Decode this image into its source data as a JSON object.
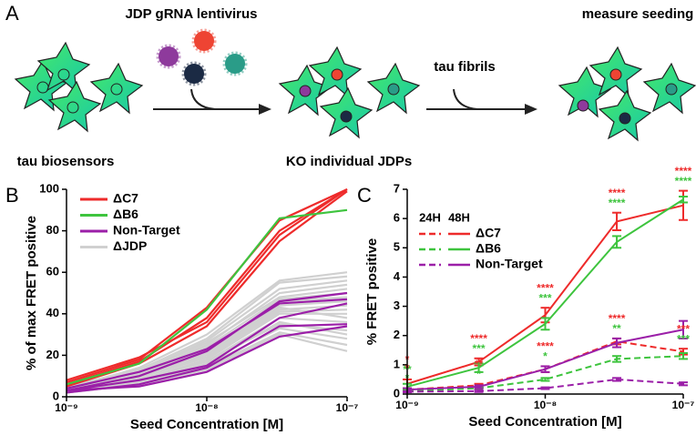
{
  "schematic": {
    "panel": "A",
    "virus_label": "JDP gRNA lentivirus",
    "fibril_label": "tau fibrils",
    "measure_label": "measure seeding",
    "start_label": "tau biosensors",
    "ko_label": "KO individual JDPs"
  },
  "chart_data": [
    {
      "type": "line",
      "panel": "B",
      "ylabel": "% of max FRET positive",
      "xlabel": "Seed Concentration [M]",
      "log_x": true,
      "x": [
        1e-09,
        3.3e-09,
        1e-08,
        3.3e-08,
        1e-07
      ],
      "xlim": [
        1e-09,
        1e-07
      ],
      "xticks": [
        {
          "value": 1e-09,
          "label": "10⁻⁹"
        },
        {
          "value": 1e-08,
          "label": "10⁻⁸"
        },
        {
          "value": 1e-07,
          "label": "10⁻⁷"
        }
      ],
      "ylim": [
        0,
        100
      ],
      "yticks": [
        0,
        20,
        40,
        60,
        80,
        100
      ],
      "series": [
        {
          "name": "ΔJDP",
          "color": "#d0d0d0",
          "lines": [
            [
              4,
              14,
              30,
              56,
              60
            ],
            [
              5,
              13,
              28,
              55,
              58
            ],
            [
              4,
              12,
              27,
              52,
              56
            ],
            [
              3,
              11,
              25,
              50,
              54
            ],
            [
              4,
              12,
              26,
              48,
              52
            ],
            [
              3,
              10,
              24,
              47,
              50
            ],
            [
              4,
              11,
              22,
              46,
              48
            ],
            [
              3,
              10,
              22,
              44,
              46
            ],
            [
              3,
              9,
              20,
              42,
              44
            ],
            [
              3,
              9,
              19,
              41,
              42
            ],
            [
              2,
              8,
              18,
              40,
              40
            ],
            [
              3,
              8,
              17,
              38,
              36
            ],
            [
              2,
              8,
              17,
              35,
              32
            ],
            [
              2,
              7,
              15,
              33,
              28
            ],
            [
              2,
              6,
              14,
              31,
              25
            ],
            [
              2,
              6,
              13,
              30,
              22
            ],
            [
              3,
              9,
              21,
              43,
              38
            ],
            [
              2,
              7,
              16,
              36,
              30
            ]
          ]
        },
        {
          "name": "ΔC7",
          "color": "#ee2b2b",
          "lines": [
            [
              7,
              18,
              43,
              85,
              100
            ],
            [
              6,
              17,
              38,
              80,
              100
            ],
            [
              8,
              19,
              36,
              78,
              100
            ],
            [
              5,
              16,
              34,
              75,
              99
            ]
          ]
        },
        {
          "name": "ΔB6",
          "color": "#3ec43e",
          "lines": [
            [
              6,
              16,
              42,
              86,
              90
            ]
          ]
        },
        {
          "name": "Non-Target",
          "color": "#9b1fa8",
          "lines": [
            [
              3,
              10,
              22,
              46,
              50
            ],
            [
              4,
              12,
              23,
              45,
              47
            ],
            [
              3,
              8,
              15,
              38,
              45
            ],
            [
              2,
              6,
              14,
              34,
              35
            ],
            [
              3,
              5,
              12,
              29,
              34
            ]
          ]
        }
      ]
    },
    {
      "type": "errorbar_line",
      "panel": "C",
      "ylabel": "% FRET positive",
      "xlabel": "Seed Concentration [M]",
      "log_x": true,
      "x": [
        1e-09,
        3.3e-09,
        1e-08,
        3.3e-08,
        1e-07
      ],
      "xlim": [
        1e-09,
        1e-07
      ],
      "xticks": [
        {
          "value": 1e-09,
          "label": "10⁻⁹"
        },
        {
          "value": 1e-08,
          "label": "10⁻⁸"
        },
        {
          "value": 1e-07,
          "label": "10⁻⁷"
        }
      ],
      "ylim": [
        0,
        7
      ],
      "yticks": [
        0,
        1,
        2,
        3,
        4,
        5,
        6,
        7
      ],
      "legend_header": [
        "24H",
        "48H"
      ],
      "series": [
        {
          "name": "ΔC7",
          "color": "#ee2b2b",
          "values_48h": [
            0.35,
            1.1,
            2.7,
            5.9,
            6.45
          ],
          "err_48h": [
            0.15,
            0.12,
            0.25,
            0.3,
            0.5
          ],
          "values_24h": [
            0.15,
            0.3,
            0.85,
            1.8,
            1.45
          ],
          "err_24h": [
            0.05,
            0.05,
            0.1,
            0.1,
            0.1
          ],
          "stars_48h": [
            "*",
            "****",
            "****",
            "****",
            "****"
          ],
          "stars_24h": [
            "*",
            "**",
            "****",
            "****",
            "***"
          ]
        },
        {
          "name": "ΔB6",
          "color": "#3ec43e",
          "values_48h": [
            0.25,
            0.9,
            2.4,
            5.2,
            6.65
          ],
          "err_48h": [
            0.1,
            0.15,
            0.2,
            0.2,
            0.1
          ],
          "values_24h": [
            0.1,
            0.2,
            0.5,
            1.2,
            1.3
          ],
          "err_24h": [
            0.03,
            0.05,
            0.05,
            0.1,
            0.1
          ],
          "stars_48h": [
            "**",
            "***",
            "***",
            "****",
            "****"
          ],
          "stars_24h": [
            "*",
            "*",
            "*",
            "**",
            "***"
          ]
        },
        {
          "name": "Non-Target",
          "color": "#9b1fa8",
          "values_48h": [
            0.15,
            0.25,
            0.85,
            1.75,
            2.2
          ],
          "err_48h": [
            0.05,
            0.05,
            0.1,
            0.15,
            0.3
          ],
          "values_24h": [
            0.08,
            0.1,
            0.2,
            0.5,
            0.35
          ],
          "err_24h": [
            0.02,
            0.03,
            0.03,
            0.05,
            0.05
          ]
        }
      ]
    }
  ]
}
